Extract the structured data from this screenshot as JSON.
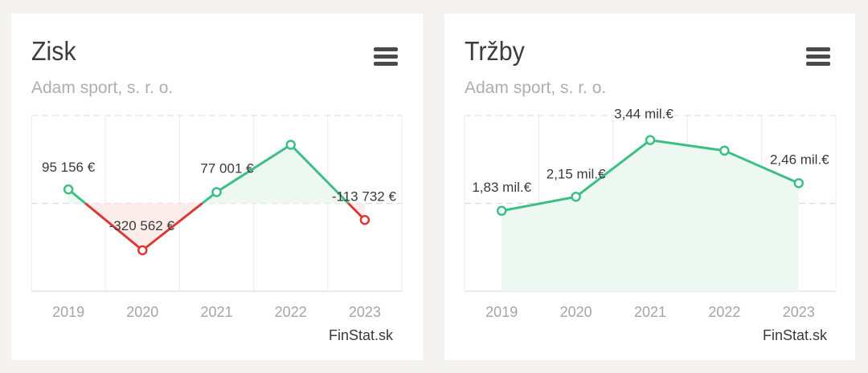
{
  "charts": [
    {
      "title": "Zisk",
      "subtitle": "Adam sport, s. r. o.",
      "credit": "FinStat.sk",
      "menu_icon": "hamburger-menu-icon",
      "colors": {
        "positive": "#3cbf84",
        "negative": "#d83a34",
        "positive_fill": "#eef8f2",
        "negative_fill": "#fcecea"
      }
    },
    {
      "title": "Tržby",
      "subtitle": "Adam sport, s. r. o.",
      "credit": "FinStat.sk",
      "menu_icon": "hamburger-menu-icon",
      "colors": {
        "positive": "#3cbf84",
        "positive_fill": "#eef8f2"
      }
    }
  ],
  "chart_data": [
    {
      "type": "line",
      "title": "Zisk",
      "subtitle": "Adam sport, s. r. o.",
      "categories": [
        "2019",
        "2020",
        "2021",
        "2022",
        "2023"
      ],
      "values": [
        95156,
        -320562,
        77001,
        400000,
        -113732
      ],
      "labels": [
        "95 156 €",
        "-320 562 €",
        "77 001 €",
        "",
        "-113 732 €"
      ],
      "ylim": [
        -600000,
        600000
      ],
      "grid": true,
      "legend": "none"
    },
    {
      "type": "area",
      "title": "Tržby",
      "subtitle": "Adam sport, s. r. o.",
      "categories": [
        "2019",
        "2020",
        "2021",
        "2022",
        "2023"
      ],
      "values": [
        1.83,
        2.15,
        3.44,
        3.2,
        2.46
      ],
      "labels": [
        "1,83 mil.€",
        "2,15 mil.€",
        "3,44 mil.€",
        "",
        "2,46 mil.€"
      ],
      "ylim": [
        0,
        4
      ],
      "grid": true,
      "legend": "none"
    }
  ]
}
